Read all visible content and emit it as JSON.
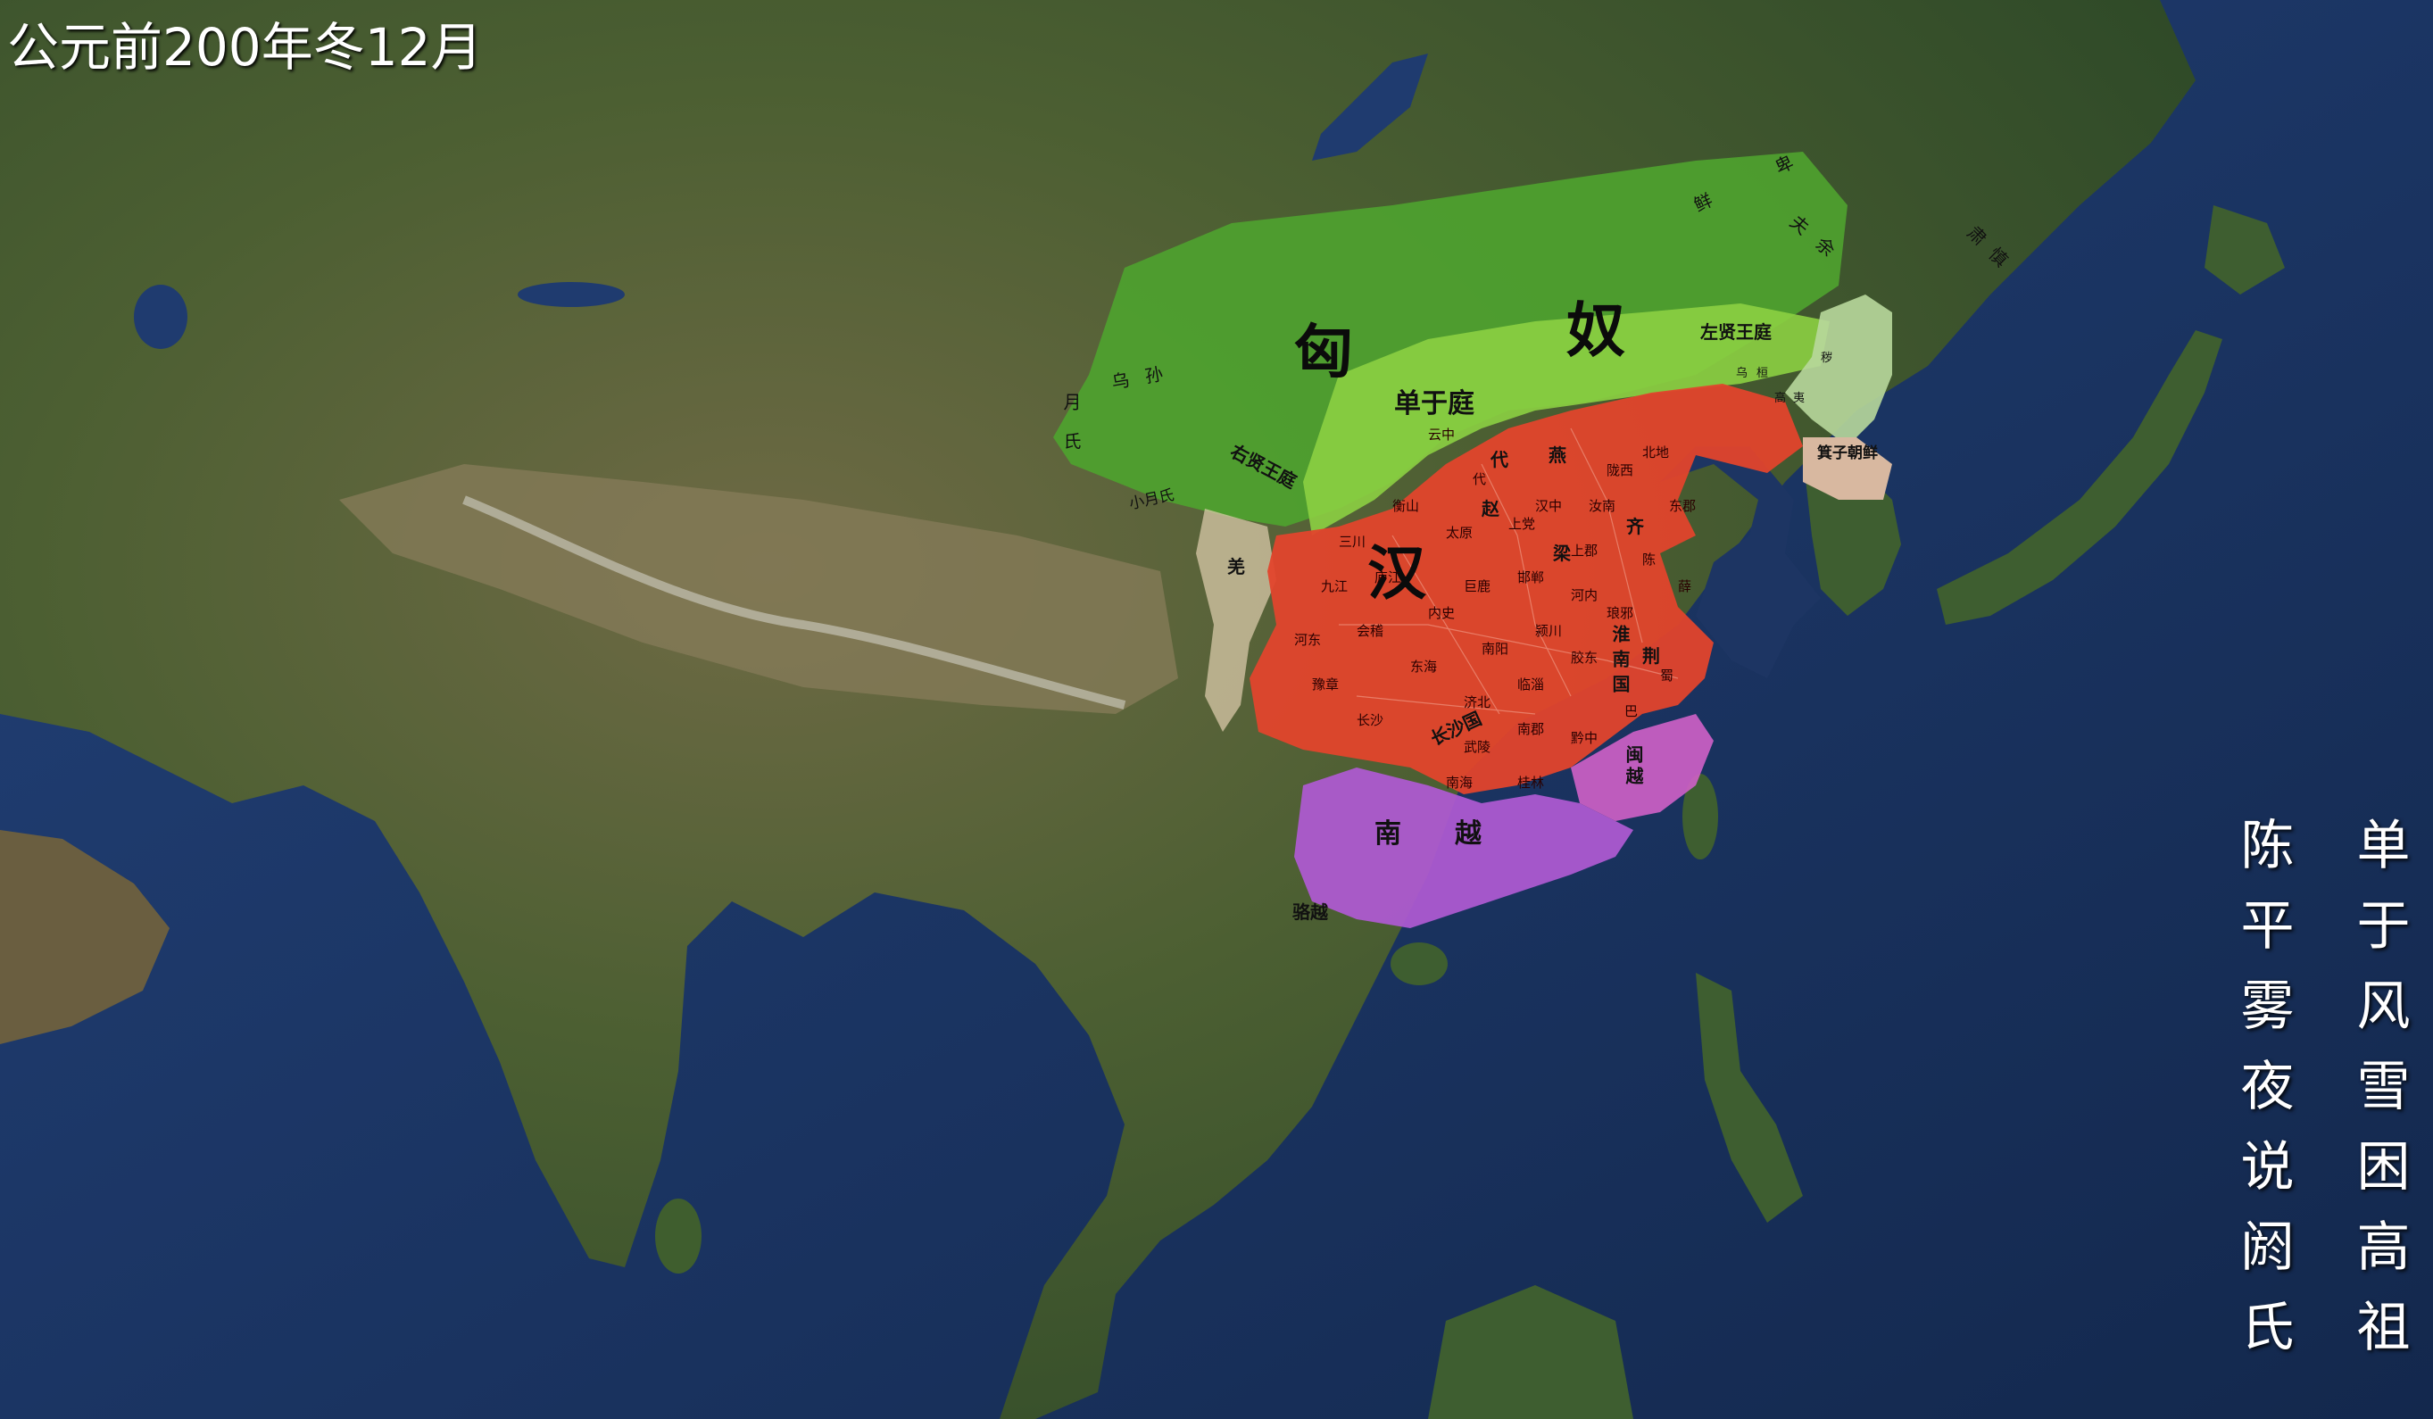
{
  "header": {
    "date": "公元前200年冬12月"
  },
  "poem": {
    "right_col": "单于风雪困高祖",
    "left_col": "陈平雾夜说阏氏"
  },
  "colors": {
    "ocean": "#1d3563",
    "land": "#3f5a2c",
    "xiongnu": "#4ea22f",
    "xiongnu_core": "#8cd043",
    "han": "#e2452c",
    "nanyue": "#b05ad4",
    "minyue": "#d060c8",
    "qiang": "#d8c8a8",
    "chaoxian": "#d8b8a0",
    "donghu_east": "#b8d89c"
  },
  "labels": {
    "xiongnu_1": "匈",
    "xiongnu_2": "奴",
    "han": "汉",
    "danyu_ting": "单于庭",
    "zuoxian_wang_ting": "左贤王庭",
    "youxian_wang_ting": "右贤王庭",
    "wusun": "乌孙",
    "yuezhi": "月氏",
    "xiaoyuezhi": "小月氏",
    "qiang": "羌",
    "xianbei": "鲜卑",
    "fuyu": "夫余",
    "sushen": "肃慎",
    "wuhuan": "乌桓",
    "gaoyi": "高夷",
    "huimo": "秽",
    "chaoxian": "箕子朝鲜",
    "yan": "燕",
    "dai": "代",
    "zhao": "赵",
    "liang": "梁",
    "qi": "齐",
    "huainan": "淮南国",
    "jing": "荆",
    "changsha": "长沙国",
    "minyue": "闽越",
    "nanyue": "南越",
    "luoyue": "骆越"
  },
  "han_small": [
    "云中",
    "代",
    "太原",
    "上党",
    "邯郸",
    "巨鹿",
    "河内",
    "颍川",
    "南阳",
    "汝南",
    "陈",
    "东郡",
    "薛",
    "琅邪",
    "胶东",
    "临淄",
    "济北",
    "东海",
    "会稽",
    "九江",
    "庐江",
    "衡山",
    "豫章",
    "长沙",
    "武陵",
    "南郡",
    "黔中",
    "巴",
    "蜀",
    "汉中",
    "陇西",
    "北地",
    "上郡",
    "内史",
    "河东",
    "三川",
    "南海",
    "桂林"
  ]
}
